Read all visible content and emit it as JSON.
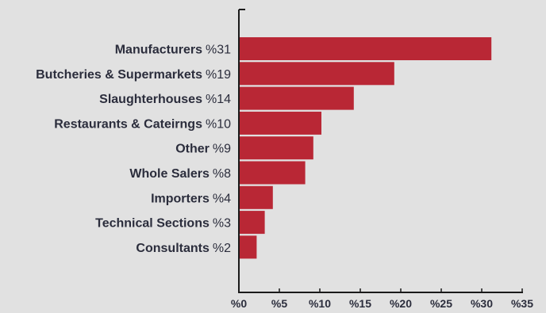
{
  "colors": {
    "background": "#e1e1e1",
    "bar": "#b92735",
    "axis": "#1a1a1a",
    "text": "#2b2d3c"
  },
  "chart_data": {
    "type": "bar",
    "orientation": "horizontal",
    "categories": [
      "Manufacturers",
      "Butcheries & Supermarkets",
      "Slaughterhouses",
      "Restaurants & Cateirngs",
      "Other",
      "Whole Salers",
      "Importers",
      "Technical Sections",
      "Consultants"
    ],
    "value_labels": [
      "%31",
      "%19",
      "%14",
      "%10",
      "%9",
      "%8",
      "%4",
      "%3",
      "%2"
    ],
    "values": [
      31.2,
      19.2,
      14.2,
      10.2,
      9.2,
      8.2,
      4.2,
      3.2,
      2.2
    ],
    "xlim": [
      0,
      35
    ],
    "xticks": [
      0,
      5,
      10,
      15,
      20,
      25,
      30,
      35
    ],
    "xtick_labels": [
      "%0",
      "%5",
      "%10",
      "%15",
      "%20",
      "%25",
      "%30",
      "%35"
    ],
    "title": "",
    "xlabel": "",
    "ylabel": "",
    "grid": false,
    "legend": "none"
  }
}
